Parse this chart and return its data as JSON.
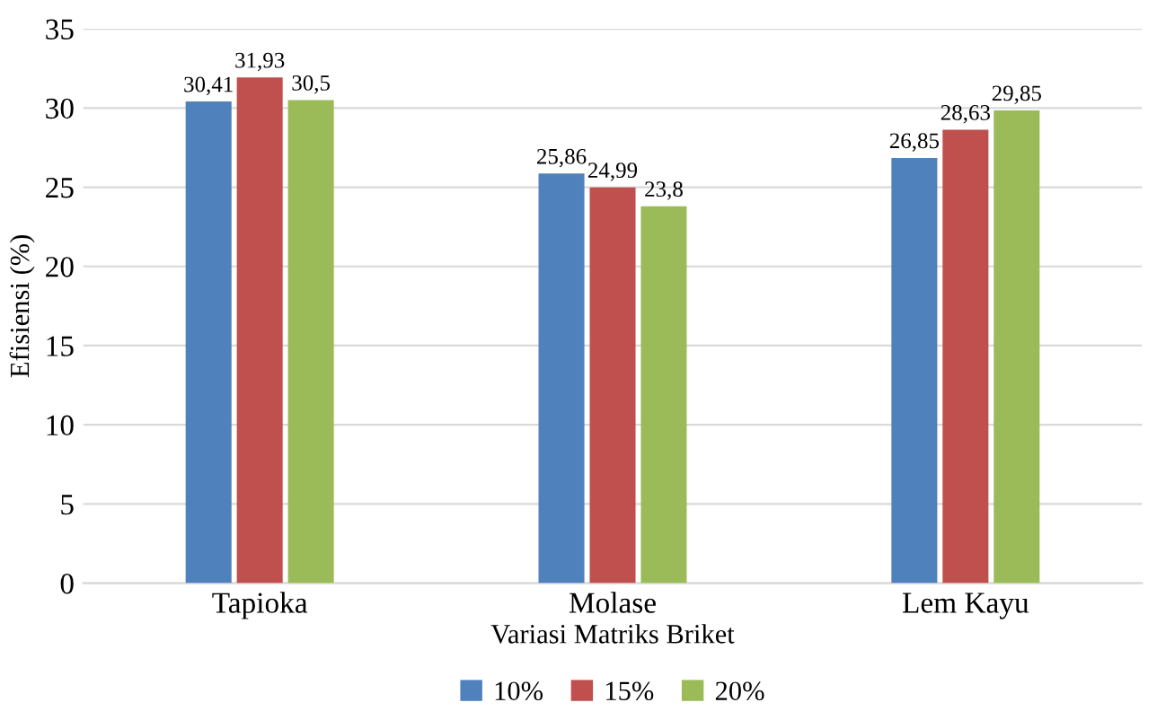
{
  "chart_data": {
    "type": "bar",
    "xlabel": "Variasi Matriks Briket",
    "ylabel": "Efisiensi (%)",
    "categories": [
      "Tapioka",
      "Molase",
      "Lem Kayu"
    ],
    "series": [
      {
        "name": "10%",
        "color": "#4f81bd",
        "values": [
          30.41,
          25.86,
          26.85
        ],
        "value_labels": [
          "30,41",
          "25,86",
          "26,85"
        ]
      },
      {
        "name": "15%",
        "color": "#c0504d",
        "values": [
          31.93,
          24.99,
          28.63
        ],
        "value_labels": [
          "31,93",
          "24,99",
          "28,63"
        ]
      },
      {
        "name": "20%",
        "color": "#9bbb59",
        "values": [
          30.5,
          23.8,
          29.85
        ],
        "value_labels": [
          "30,5",
          "23,8",
          "29,85"
        ]
      }
    ],
    "ylim": [
      0,
      35
    ],
    "yticks": [
      0,
      5,
      10,
      15,
      20,
      25,
      30,
      35
    ],
    "grid": "y",
    "legend": "bottom"
  }
}
